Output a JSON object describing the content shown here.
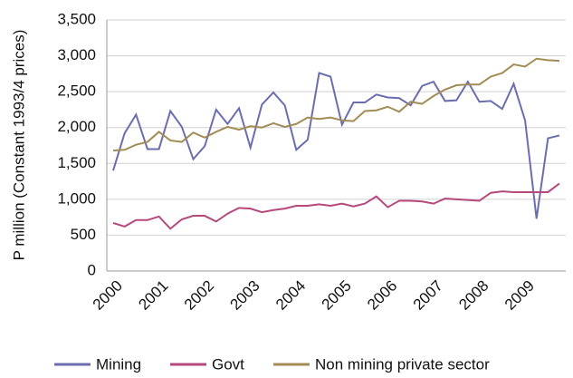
{
  "chart_data": {
    "type": "line",
    "y_label": "P million (Constant 1993/4 prices)",
    "categories": [
      "2000",
      null,
      null,
      null,
      "2001",
      null,
      null,
      null,
      "2002",
      null,
      null,
      null,
      "2003",
      null,
      null,
      null,
      "2004",
      null,
      null,
      null,
      "2005",
      null,
      null,
      null,
      "2006",
      null,
      null,
      null,
      "2007",
      null,
      null,
      null,
      "2008",
      null,
      null,
      null,
      "2009",
      null,
      null,
      null
    ],
    "series": [
      {
        "name": "Mining",
        "color": "#6a6eae",
        "values": [
          1400,
          1920,
          2180,
          1700,
          1700,
          2230,
          2010,
          1560,
          1740,
          2250,
          2050,
          2270,
          1720,
          2320,
          2490,
          2310,
          1690,
          1830,
          2760,
          2710,
          2040,
          2350,
          2350,
          2460,
          2420,
          2410,
          2310,
          2580,
          2640,
          2370,
          2380,
          2640,
          2360,
          2370,
          2260,
          2610,
          2100,
          730,
          1850,
          1890
        ]
      },
      {
        "name": "Govt",
        "color": "#b5487c",
        "values": [
          670,
          620,
          710,
          710,
          760,
          590,
          720,
          770,
          770,
          690,
          800,
          880,
          870,
          820,
          850,
          870,
          910,
          910,
          930,
          910,
          940,
          900,
          940,
          1040,
          890,
          980,
          980,
          970,
          940,
          1010,
          1000,
          990,
          980,
          1090,
          1110,
          1100,
          1100,
          1100,
          1100,
          1220
        ]
      },
      {
        "name": "Non mining private sector",
        "color": "#a38c55",
        "values": [
          1680,
          1690,
          1760,
          1800,
          1940,
          1820,
          1800,
          1930,
          1860,
          1940,
          2010,
          1970,
          2020,
          2000,
          2060,
          2010,
          2050,
          2140,
          2120,
          2140,
          2100,
          2090,
          2230,
          2240,
          2290,
          2220,
          2360,
          2330,
          2440,
          2530,
          2590,
          2600,
          2600,
          2710,
          2760,
          2880,
          2850,
          2960,
          2940,
          2930
        ]
      }
    ],
    "ylim": [
      0,
      3500
    ],
    "yticks": [
      0,
      500,
      {
        "value": 1000,
        "label": "1,000"
      },
      {
        "value": 1500,
        "label": "1,500"
      },
      {
        "value": 2000,
        "label": "2,000"
      },
      {
        "value": 2500,
        "label": "2,500"
      },
      {
        "value": 3000,
        "label": "3,000"
      },
      {
        "value": 3500,
        "label": "3,500"
      }
    ],
    "grid": true
  }
}
